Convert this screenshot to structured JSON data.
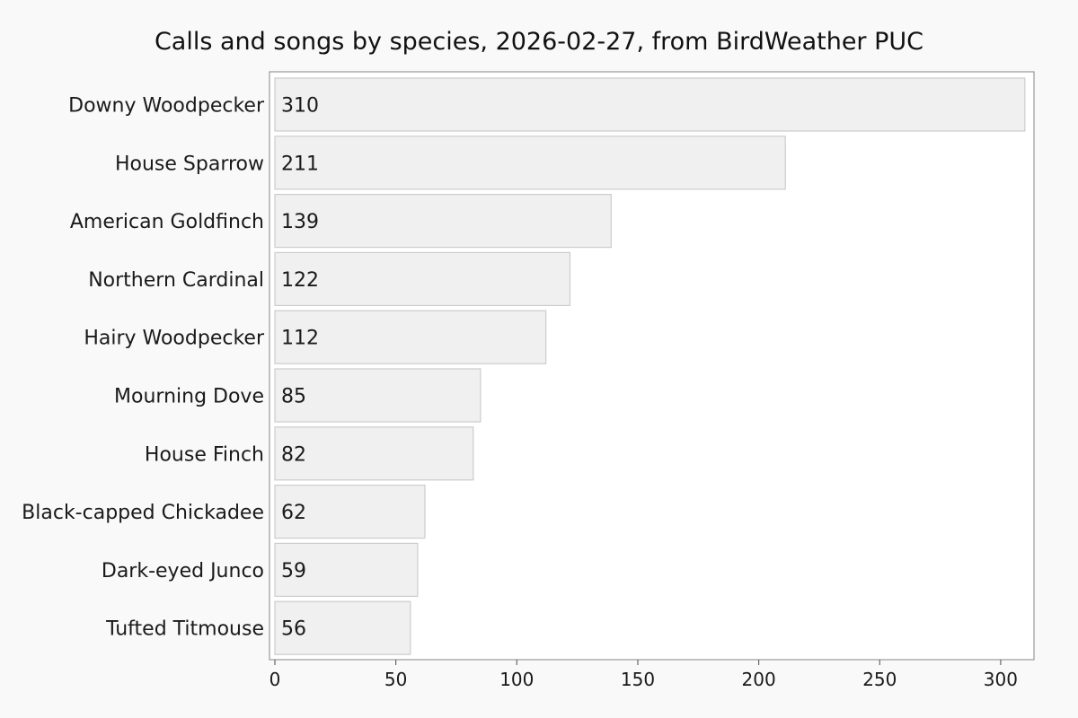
{
  "chart_data": {
    "type": "bar",
    "orientation": "horizontal",
    "title": "Calls and songs by species, 2026-02-27, from BirdWeather PUC",
    "xlabel": "",
    "ylabel": "",
    "categories": [
      "Downy Woodpecker",
      "House Sparrow",
      "American Goldfinch",
      "Northern Cardinal",
      "Hairy Woodpecker",
      "Mourning Dove",
      "House Finch",
      "Black-capped Chickadee",
      "Dark-eyed Junco",
      "Tufted Titmouse"
    ],
    "values": [
      310,
      211,
      139,
      122,
      112,
      85,
      82,
      62,
      59,
      56
    ],
    "xlim": [
      0,
      312
    ],
    "xticks": [
      0,
      50,
      100,
      150,
      200,
      250,
      300
    ],
    "grid": false,
    "legend": "none",
    "colors": {
      "bar_fill": "#f0f0f0",
      "bar_stroke": "#cccccc",
      "plot_background": "#ffffff",
      "plot_border": "#999999",
      "page_background": "#f9f9f9"
    }
  }
}
